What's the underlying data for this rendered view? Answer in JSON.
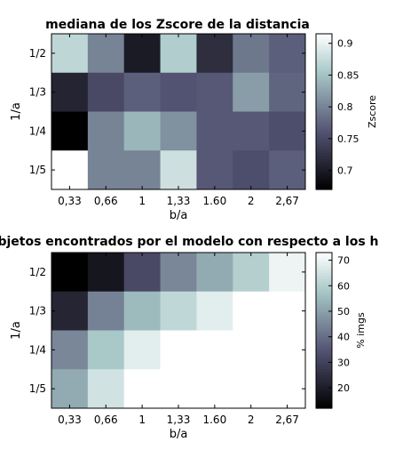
{
  "chart_data": [
    {
      "type": "heatmap",
      "title": "mediana de los Zscore de la distancia",
      "xlabel": "b/a",
      "ylabel": "1/a",
      "x_categories": [
        "0,33",
        "0,66",
        "1",
        "1,33",
        "1.60",
        "2",
        "2,67"
      ],
      "y_categories": [
        "1/2",
        "1/3",
        "1/4",
        "1/5"
      ],
      "values": [
        [
          0.87,
          0.8,
          0.7,
          0.86,
          0.72,
          0.79,
          0.77
        ],
        [
          0.71,
          0.75,
          0.77,
          0.76,
          0.765,
          0.82,
          0.775
        ],
        [
          0.67,
          0.8,
          0.84,
          0.81,
          0.765,
          0.765,
          0.755
        ],
        [
          0.915,
          0.8,
          0.8,
          0.88,
          0.765,
          0.755,
          0.77
        ]
      ],
      "colorbar": {
        "label": "Zscore",
        "range": [
          0.67,
          0.915
        ],
        "ticks": [
          0.7,
          0.75,
          0.8,
          0.85,
          0.9
        ],
        "tick_labels": [
          "0.7",
          "0.75",
          "0.8",
          "0.85",
          "0.9"
        ]
      },
      "colormap": "bone"
    },
    {
      "type": "heatmap",
      "title": "e objetos encontrados por el modelo con respecto a los h",
      "xlabel": "b/a",
      "ylabel": "1/a",
      "x_categories": [
        "0,33",
        "0,66",
        "1",
        "1,33",
        "1.60",
        "2",
        "2,67"
      ],
      "y_categories": [
        "1/2",
        "1/3",
        "1/4",
        "1/5"
      ],
      "values": [
        [
          12,
          18,
          32,
          45,
          52,
          60,
          70
        ],
        [
          22,
          44,
          55,
          62,
          68,
          null,
          null
        ],
        [
          45,
          58,
          68,
          null,
          null,
          null,
          null
        ],
        [
          52,
          65,
          null,
          null,
          null,
          null,
          null
        ]
      ],
      "colorbar": {
        "label": "% imgs",
        "range": [
          12,
          73
        ],
        "ticks": [
          20,
          30,
          40,
          50,
          60,
          70
        ],
        "tick_labels": [
          "20",
          "30",
          "40",
          "50",
          "60",
          "70"
        ]
      },
      "colormap": "bone"
    }
  ]
}
